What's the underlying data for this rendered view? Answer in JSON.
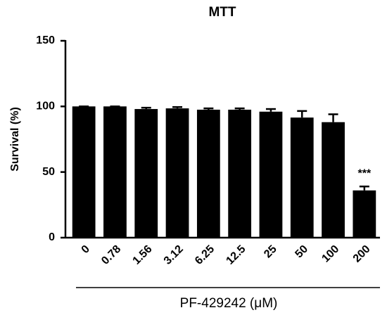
{
  "chart_data": {
    "type": "bar",
    "title": "MTT",
    "y_label": "Survival (%)",
    "x_label": "PF-429242 (μM)",
    "categories": [
      "0",
      "0.78",
      "1.56",
      "3.12",
      "6.25",
      "12.5",
      "25",
      "50",
      "100",
      "200"
    ],
    "values": [
      100,
      100,
      98,
      98.5,
      97.5,
      97.5,
      96,
      91.5,
      88,
      36
    ],
    "errors": [
      0,
      0,
      1,
      1,
      1,
      1,
      2,
      5,
      6,
      3
    ],
    "annotation": "***",
    "color": "#000000",
    "ylim": [
      0,
      150
    ],
    "yticks": [
      0,
      50,
      100,
      150
    ],
    "grid": false
  }
}
